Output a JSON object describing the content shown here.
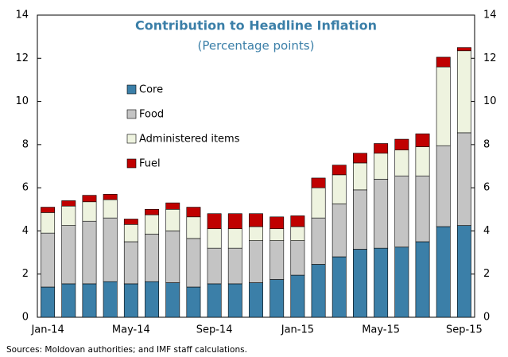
{
  "chart_data": {
    "type": "stacked_bar",
    "title": "Contribution to Headline Inflation",
    "subtitle": "(Percentage points)",
    "source": "Sources: Moldovan authorities; and IMF staff calculations.",
    "categories": [
      "Jan-14",
      null,
      null,
      null,
      "May-14",
      null,
      null,
      null,
      "Sep-14",
      null,
      null,
      null,
      "Jan-15",
      null,
      null,
      null,
      "May-15",
      null,
      null,
      null,
      "Sep-15"
    ],
    "series": [
      {
        "name": "Core",
        "color": "#3b7fa8",
        "values": [
          1.4,
          1.55,
          1.55,
          1.65,
          1.55,
          1.65,
          1.6,
          1.4,
          1.55,
          1.55,
          1.6,
          1.75,
          1.95,
          2.45,
          2.8,
          3.15,
          3.2,
          3.25,
          3.5,
          4.2,
          4.25
        ]
      },
      {
        "name": "Food",
        "color": "#c4c4c4",
        "values": [
          2.5,
          2.7,
          2.9,
          2.95,
          1.95,
          2.2,
          2.4,
          2.25,
          1.65,
          1.65,
          1.95,
          1.8,
          1.6,
          2.15,
          2.45,
          2.75,
          3.2,
          3.3,
          3.05,
          3.75,
          4.3
        ]
      },
      {
        "name": "Administered items",
        "color": "#eef3df",
        "values": [
          0.95,
          0.9,
          0.9,
          0.85,
          0.8,
          0.9,
          1.0,
          1.0,
          0.9,
          0.9,
          0.65,
          0.55,
          0.65,
          1.4,
          1.35,
          1.25,
          1.2,
          1.2,
          1.35,
          3.65,
          3.8
        ]
      },
      {
        "name": "Fuel",
        "color": "#c00000",
        "values": [
          0.25,
          0.25,
          0.3,
          0.25,
          0.25,
          0.25,
          0.3,
          0.45,
          0.7,
          0.7,
          0.6,
          0.55,
          0.5,
          0.45,
          0.45,
          0.45,
          0.45,
          0.5,
          0.6,
          0.45,
          0.15
        ]
      }
    ],
    "ylim": [
      0,
      14
    ],
    "yticks": [
      0,
      2,
      4,
      6,
      8,
      10,
      12,
      14
    ],
    "grid": false
  }
}
